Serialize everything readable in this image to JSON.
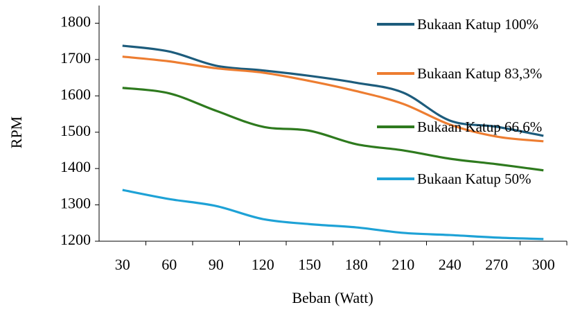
{
  "chart_data": {
    "type": "line",
    "x_label": "Beban (Watt)",
    "y_label": "RPM",
    "x": [
      30,
      60,
      90,
      120,
      150,
      180,
      210,
      240,
      270,
      300
    ],
    "xlim": [
      15,
      315
    ],
    "xticks": [
      30,
      60,
      90,
      120,
      150,
      180,
      210,
      240,
      270,
      300
    ],
    "ylim": [
      1200,
      1860
    ],
    "yticks": [
      1200,
      1300,
      1400,
      1500,
      1600,
      1700,
      1800
    ],
    "smooth": true,
    "legend": "upper right",
    "series": [
      {
        "name": "Bukaan Katup 100%",
        "color": "#1d5c7c",
        "values": [
          1738,
          1722,
          1683,
          1670,
          1655,
          1636,
          1609,
          1532,
          1515,
          1490
        ]
      },
      {
        "name": "Bukaan Katup 83,3%",
        "color": "#ed7d31",
        "values": [
          1708,
          1695,
          1676,
          1664,
          1641,
          1613,
          1578,
          1521,
          1488,
          1475
        ]
      },
      {
        "name": "Bukaan Katup 66,6%",
        "color": "#2e7a1e",
        "values": [
          1622,
          1607,
          1559,
          1515,
          1504,
          1467,
          1450,
          1427,
          1412,
          1395
        ]
      },
      {
        "name": "Bukaan Katup 50%",
        "color": "#1ea2d6",
        "values": [
          1341,
          1316,
          1297,
          1261,
          1247,
          1238,
          1223,
          1217,
          1210,
          1206
        ]
      }
    ]
  }
}
